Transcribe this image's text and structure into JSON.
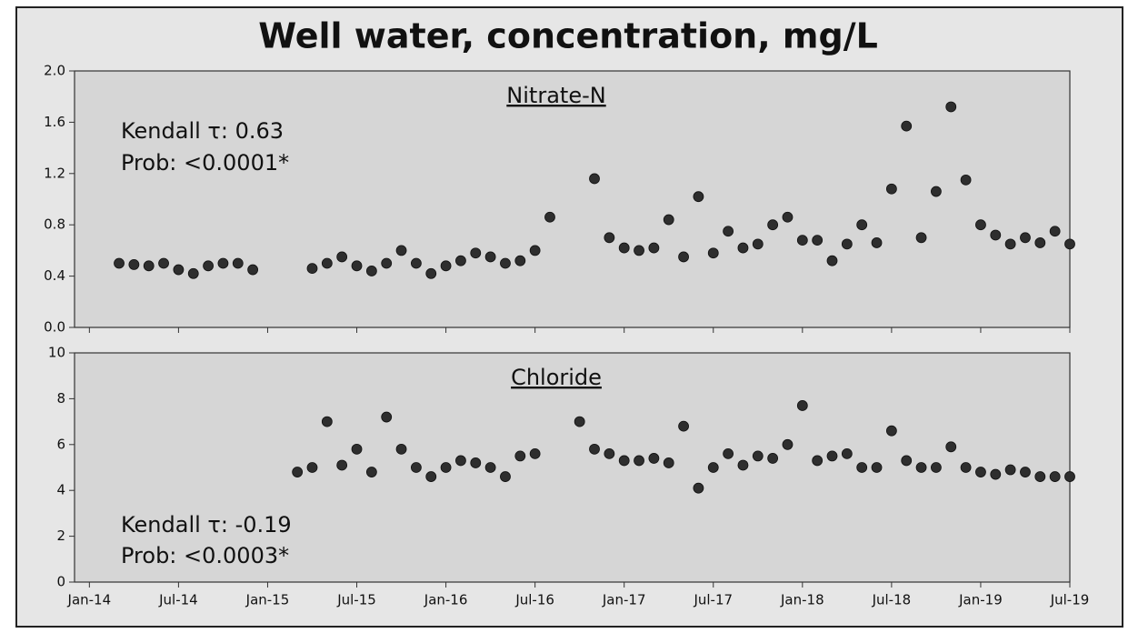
{
  "title": "Well water, concentration, mg/L",
  "chart_data": [
    {
      "type": "scatter",
      "title": "Nitrate-N",
      "annotations": [
        "Kendall τ: 0.63",
        "Prob: <0.0001*"
      ],
      "xlim": [
        "2013-12",
        "2019-07"
      ],
      "ylim": [
        0,
        2
      ],
      "yticks": [
        {
          "value": 0,
          "label": "0.0"
        },
        0.4,
        0.8,
        1.2,
        1.6,
        {
          "value": 2,
          "label": "2.0"
        }
      ],
      "color": "#2e2e2e",
      "x": [
        "2014-03",
        "2014-04",
        "2014-05",
        "2014-06",
        "2014-07",
        "2014-08",
        "2014-09",
        "2014-10",
        "2014-11",
        "2014-12",
        "2015-04",
        "2015-05",
        "2015-06",
        "2015-07",
        "2015-08",
        "2015-09",
        "2015-10",
        "2015-11",
        "2015-12",
        "2016-01",
        "2016-02",
        "2016-03",
        "2016-04",
        "2016-05",
        "2016-06",
        "2016-07",
        "2016-08",
        "2016-11",
        "2016-12",
        "2017-01",
        "2017-02",
        "2017-03",
        "2017-04",
        "2017-05",
        "2017-06",
        "2017-07",
        "2017-08",
        "2017-09",
        "2017-10",
        "2017-11",
        "2017-12",
        "2018-01",
        "2018-02",
        "2018-03",
        "2018-04",
        "2018-05",
        "2018-06",
        "2018-07",
        "2018-08",
        "2018-09",
        "2018-10",
        "2018-11",
        "2018-12",
        "2019-01",
        "2019-02",
        "2019-03",
        "2019-04",
        "2019-05",
        "2019-06",
        "2019-07"
      ],
      "values": [
        0.5,
        0.49,
        0.48,
        0.5,
        0.45,
        0.42,
        0.48,
        0.5,
        0.5,
        0.45,
        0.46,
        0.5,
        0.55,
        0.48,
        0.44,
        0.5,
        0.6,
        0.5,
        0.42,
        0.48,
        0.52,
        0.58,
        0.55,
        0.5,
        0.52,
        0.6,
        0.86,
        1.16,
        0.7,
        0.62,
        0.6,
        0.62,
        0.84,
        0.55,
        1.02,
        0.58,
        0.75,
        0.62,
        0.65,
        0.8,
        0.86,
        0.68,
        0.68,
        0.52,
        0.65,
        0.8,
        0.66,
        1.08,
        1.57,
        0.7,
        1.06,
        1.72,
        1.15,
        0.8,
        0.72,
        0.65,
        0.7,
        0.66,
        0.75,
        0.65
      ]
    },
    {
      "type": "scatter",
      "title": "Chloride",
      "annotations": [
        "Kendall τ: -0.19",
        "Prob: <0.0003*"
      ],
      "xlim": [
        "2013-12",
        "2019-07"
      ],
      "xticks": [
        {
          "value": "2014-01",
          "label": "Jan-14"
        },
        {
          "value": "2014-07",
          "label": "Jul-14"
        },
        {
          "value": "2015-01",
          "label": "Jan-15"
        },
        {
          "value": "2015-07",
          "label": "Jul-15"
        },
        {
          "value": "2016-01",
          "label": "Jan-16"
        },
        {
          "value": "2016-07",
          "label": "Jul-16"
        },
        {
          "value": "2017-01",
          "label": "Jan-17"
        },
        {
          "value": "2017-07",
          "label": "Jul-17"
        },
        {
          "value": "2018-01",
          "label": "Jan-18"
        },
        {
          "value": "2018-07",
          "label": "Jul-18"
        },
        {
          "value": "2019-01",
          "label": "Jan-19"
        },
        {
          "value": "2019-07",
          "label": "Jul-19"
        }
      ],
      "ylim": [
        0,
        10
      ],
      "yticks": [
        0,
        2,
        4,
        6,
        8,
        10
      ],
      "color": "#2e2e2e",
      "x": [
        "2015-03",
        "2015-04",
        "2015-05",
        "2015-06",
        "2015-07",
        "2015-08",
        "2015-09",
        "2015-10",
        "2015-11",
        "2015-12",
        "2016-01",
        "2016-02",
        "2016-03",
        "2016-04",
        "2016-05",
        "2016-06",
        "2016-07",
        "2016-10",
        "2016-11",
        "2016-12",
        "2017-01",
        "2017-02",
        "2017-03",
        "2017-04",
        "2017-05",
        "2017-06",
        "2017-07",
        "2017-08",
        "2017-09",
        "2017-10",
        "2017-11",
        "2017-12",
        "2018-01",
        "2018-02",
        "2018-03",
        "2018-04",
        "2018-05",
        "2018-06",
        "2018-07",
        "2018-08",
        "2018-09",
        "2018-10",
        "2018-11",
        "2018-12",
        "2019-01",
        "2019-02",
        "2019-03",
        "2019-04",
        "2019-05",
        "2019-06",
        "2019-07"
      ],
      "values": [
        4.8,
        5.0,
        7.0,
        5.1,
        5.8,
        4.8,
        7.2,
        5.8,
        5.0,
        4.6,
        5.0,
        5.3,
        5.2,
        5.0,
        4.6,
        5.5,
        5.6,
        7.0,
        5.8,
        5.6,
        5.3,
        5.3,
        5.4,
        5.2,
        6.8,
        4.1,
        5.0,
        5.6,
        5.1,
        5.5,
        5.4,
        6.0,
        7.7,
        5.3,
        5.5,
        5.6,
        5.0,
        5.0,
        6.6,
        5.3,
        5.0,
        5.0,
        5.9,
        5.0,
        4.8,
        4.7,
        4.9,
        4.8,
        4.6,
        4.6,
        4.6
      ]
    }
  ]
}
